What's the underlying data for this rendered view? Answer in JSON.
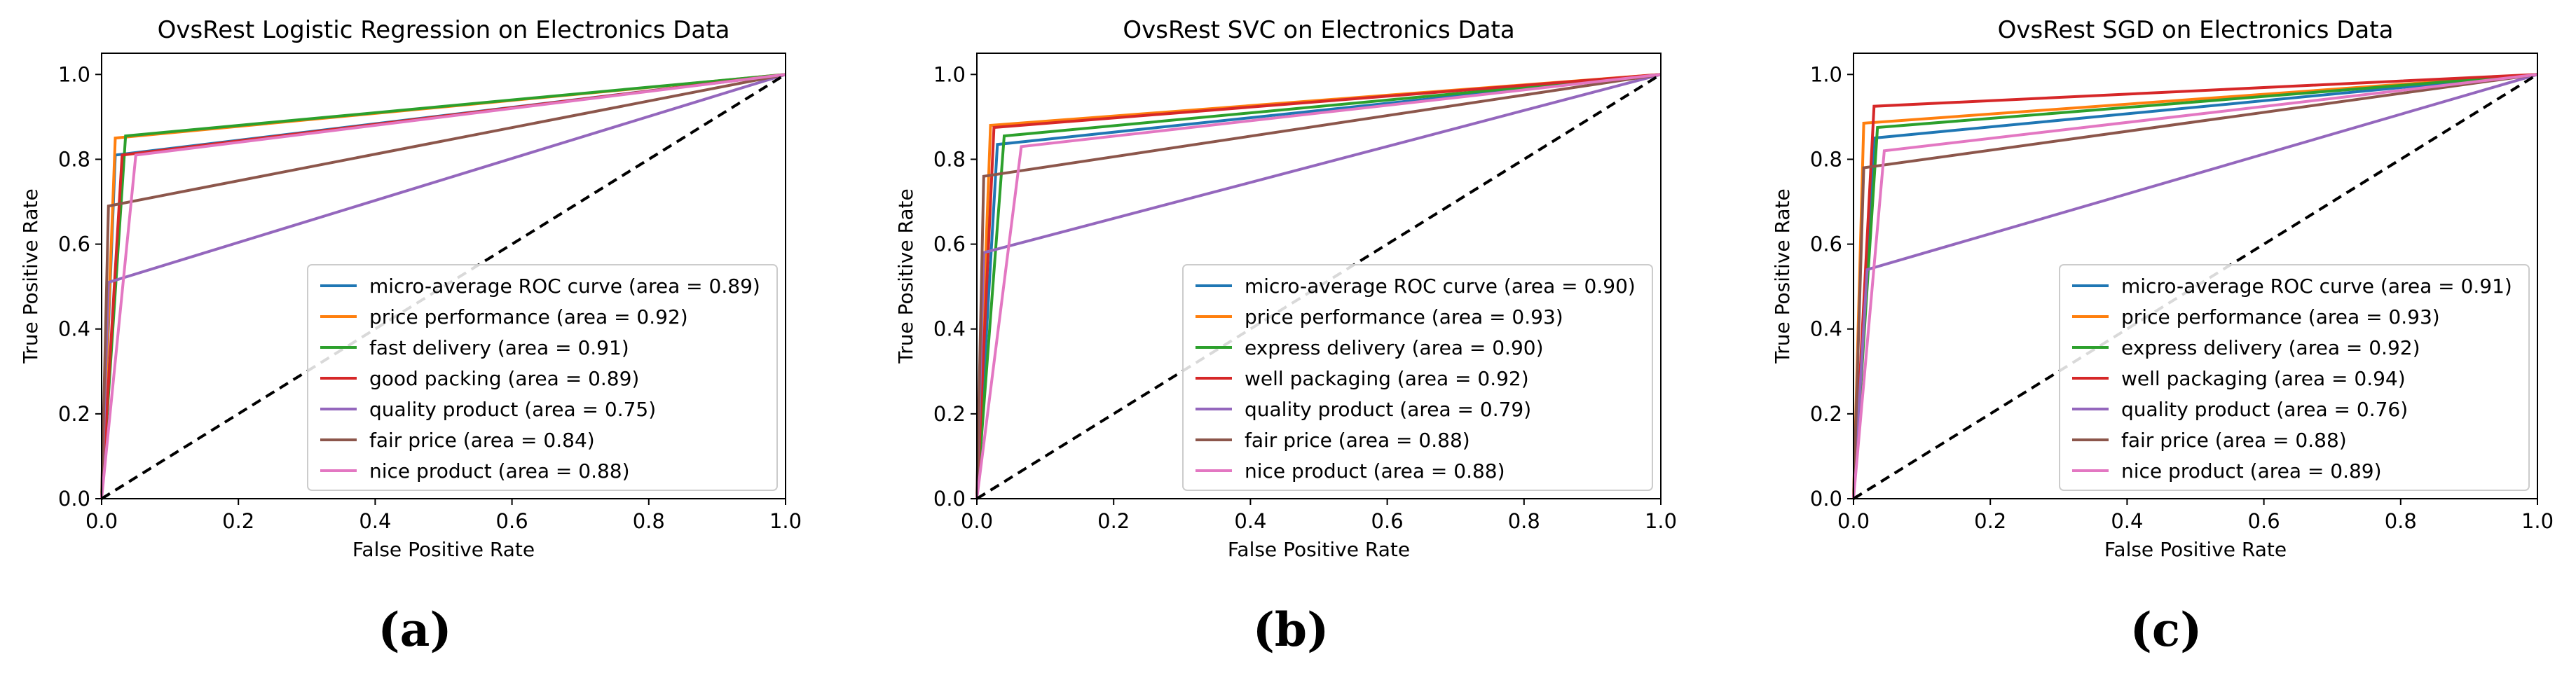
{
  "colors": [
    "#1f77b4",
    "#ff7f0e",
    "#2ca02c",
    "#d62728",
    "#9467bd",
    "#8c564b",
    "#e377c2"
  ],
  "chart_data": [
    {
      "type": "line",
      "panel_label": "(a)",
      "title": "OvsRest Logistic Regression on Electronics Data",
      "xlabel": "False Positive Rate",
      "ylabel": "True Positive Rate",
      "xlim": [
        0,
        1
      ],
      "ylim": [
        0,
        1.05
      ],
      "xticks": [
        "0.0",
        "0.2",
        "0.4",
        "0.6",
        "0.8",
        "1.0"
      ],
      "yticks": [
        "0.0",
        "0.2",
        "0.4",
        "0.6",
        "0.8",
        "1.0"
      ],
      "legend_position": "lower-right",
      "series": [
        {
          "name": "micro-average ROC curve (area = 0.89)",
          "x": [
            0,
            0.02,
            1
          ],
          "y": [
            0,
            0.81,
            1
          ]
        },
        {
          "name": "price performance (area = 0.92)",
          "x": [
            0,
            0.02,
            1
          ],
          "y": [
            0,
            0.85,
            1
          ]
        },
        {
          "name": "fast delivery (area = 0.91)",
          "x": [
            0,
            0.035,
            1
          ],
          "y": [
            0,
            0.855,
            1
          ]
        },
        {
          "name": "good packing (area = 0.89)",
          "x": [
            0,
            0.03,
            1
          ],
          "y": [
            0,
            0.81,
            1
          ]
        },
        {
          "name": "quality product (area = 0.75)",
          "x": [
            0,
            0.01,
            1
          ],
          "y": [
            0,
            0.51,
            1
          ]
        },
        {
          "name": "fair price (area = 0.84)",
          "x": [
            0,
            0.01,
            1
          ],
          "y": [
            0,
            0.69,
            1
          ]
        },
        {
          "name": "nice product (area = 0.88)",
          "x": [
            0,
            0.05,
            1
          ],
          "y": [
            0,
            0.81,
            1
          ]
        }
      ],
      "reference_line": {
        "x": [
          0,
          1
        ],
        "y": [
          0,
          1
        ]
      }
    },
    {
      "type": "line",
      "panel_label": "(b)",
      "title": "OvsRest SVC on Electronics Data",
      "xlabel": "False Positive Rate",
      "ylabel": "True Positive Rate",
      "xlim": [
        0,
        1
      ],
      "ylim": [
        0,
        1.05
      ],
      "xticks": [
        "0.0",
        "0.2",
        "0.4",
        "0.6",
        "0.8",
        "1.0"
      ],
      "yticks": [
        "0.0",
        "0.2",
        "0.4",
        "0.6",
        "0.8",
        "1.0"
      ],
      "legend_position": "lower-right",
      "series": [
        {
          "name": "micro-average ROC curve (area = 0.90)",
          "x": [
            0,
            0.03,
            1
          ],
          "y": [
            0,
            0.835,
            1
          ]
        },
        {
          "name": "price performance (area = 0.93)",
          "x": [
            0,
            0.02,
            1
          ],
          "y": [
            0,
            0.88,
            1
          ]
        },
        {
          "name": "express delivery (area = 0.90)",
          "x": [
            0,
            0.04,
            1
          ],
          "y": [
            0,
            0.855,
            1
          ]
        },
        {
          "name": "well packaging (area = 0.92)",
          "x": [
            0,
            0.025,
            1
          ],
          "y": [
            0,
            0.875,
            1
          ]
        },
        {
          "name": "quality product (area = 0.79)",
          "x": [
            0,
            0.01,
            1
          ],
          "y": [
            0,
            0.58,
            1
          ]
        },
        {
          "name": "fair price (area = 0.88)",
          "x": [
            0,
            0.01,
            1
          ],
          "y": [
            0,
            0.76,
            1
          ]
        },
        {
          "name": "nice product (area = 0.88)",
          "x": [
            0,
            0.065,
            1
          ],
          "y": [
            0,
            0.83,
            1
          ]
        }
      ],
      "reference_line": {
        "x": [
          0,
          1
        ],
        "y": [
          0,
          1
        ]
      }
    },
    {
      "type": "line",
      "panel_label": "(c)",
      "title": "OvsRest SGD on Electronics Data",
      "xlabel": "False Positive Rate",
      "ylabel": "True Positive Rate",
      "xlim": [
        0,
        1
      ],
      "ylim": [
        0,
        1.05
      ],
      "xticks": [
        "0.0",
        "0.2",
        "0.4",
        "0.6",
        "0.8",
        "1.0"
      ],
      "yticks": [
        "0.0",
        "0.2",
        "0.4",
        "0.6",
        "0.8",
        "1.0"
      ],
      "legend_position": "lower-right",
      "series": [
        {
          "name": "micro-average ROC curve (area = 0.91)",
          "x": [
            0,
            0.03,
            1
          ],
          "y": [
            0,
            0.85,
            1
          ]
        },
        {
          "name": "price performance (area = 0.93)",
          "x": [
            0,
            0.015,
            1
          ],
          "y": [
            0,
            0.885,
            1
          ]
        },
        {
          "name": "express delivery (area = 0.92)",
          "x": [
            0,
            0.035,
            1
          ],
          "y": [
            0,
            0.875,
            1
          ]
        },
        {
          "name": "well packaging (area = 0.94)",
          "x": [
            0,
            0.03,
            1
          ],
          "y": [
            0,
            0.925,
            1
          ]
        },
        {
          "name": "quality product (area = 0.76)",
          "x": [
            0,
            0.02,
            1
          ],
          "y": [
            0,
            0.54,
            1
          ]
        },
        {
          "name": "fair price (area = 0.88)",
          "x": [
            0,
            0.015,
            1
          ],
          "y": [
            0,
            0.78,
            1
          ]
        },
        {
          "name": "nice product (area = 0.89)",
          "x": [
            0,
            0.045,
            1
          ],
          "y": [
            0,
            0.82,
            1
          ]
        }
      ],
      "reference_line": {
        "x": [
          0,
          1
        ],
        "y": [
          0,
          1
        ]
      }
    }
  ]
}
